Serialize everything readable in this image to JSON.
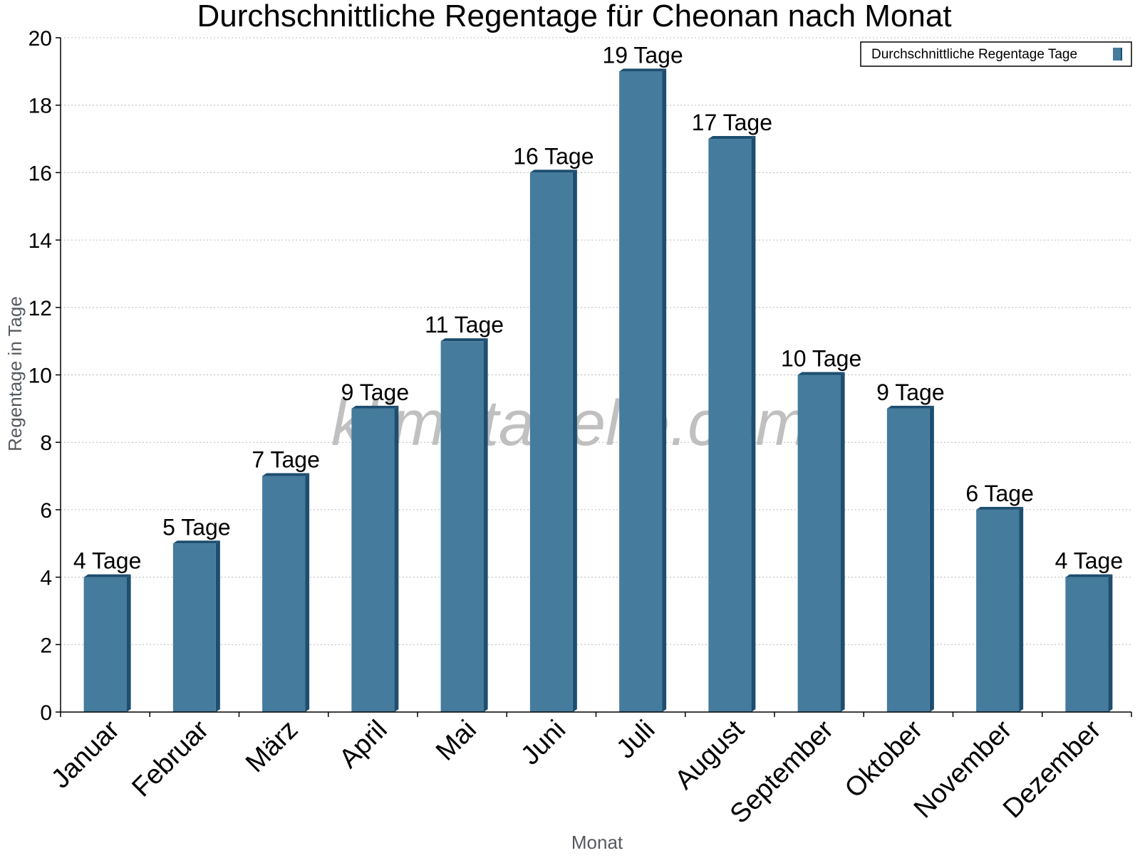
{
  "chart_data": {
    "type": "bar",
    "title": "Durchschnittliche Regentage für Cheonan nach Monat",
    "xlabel": "Monat",
    "ylabel": "Regentage in Tage",
    "categories": [
      "Januar",
      "Februar",
      "März",
      "April",
      "Mai",
      "Juni",
      "Juli",
      "August",
      "September",
      "Oktober",
      "November",
      "Dezember"
    ],
    "series": [
      {
        "name": "Durchschnittliche Regentage Tage",
        "values": [
          4,
          5,
          7,
          9,
          11,
          16,
          19,
          17,
          10,
          9,
          6,
          4
        ],
        "color": "#457b9d",
        "side_color": "#1d4e6f"
      }
    ],
    "data_labels": [
      "4 Tage",
      "5 Tage",
      "7 Tage",
      "9 Tage",
      "11 Tage",
      "16 Tage",
      "19 Tage",
      "17 Tage",
      "10 Tage",
      "9 Tage",
      "6 Tage",
      "4 Tage"
    ],
    "ylim": [
      0,
      20
    ],
    "yticks": [
      0,
      2,
      4,
      6,
      8,
      10,
      12,
      14,
      16,
      18,
      20
    ],
    "grid": true,
    "legend_position": "top-right",
    "watermark": "klimatabelle.com"
  }
}
